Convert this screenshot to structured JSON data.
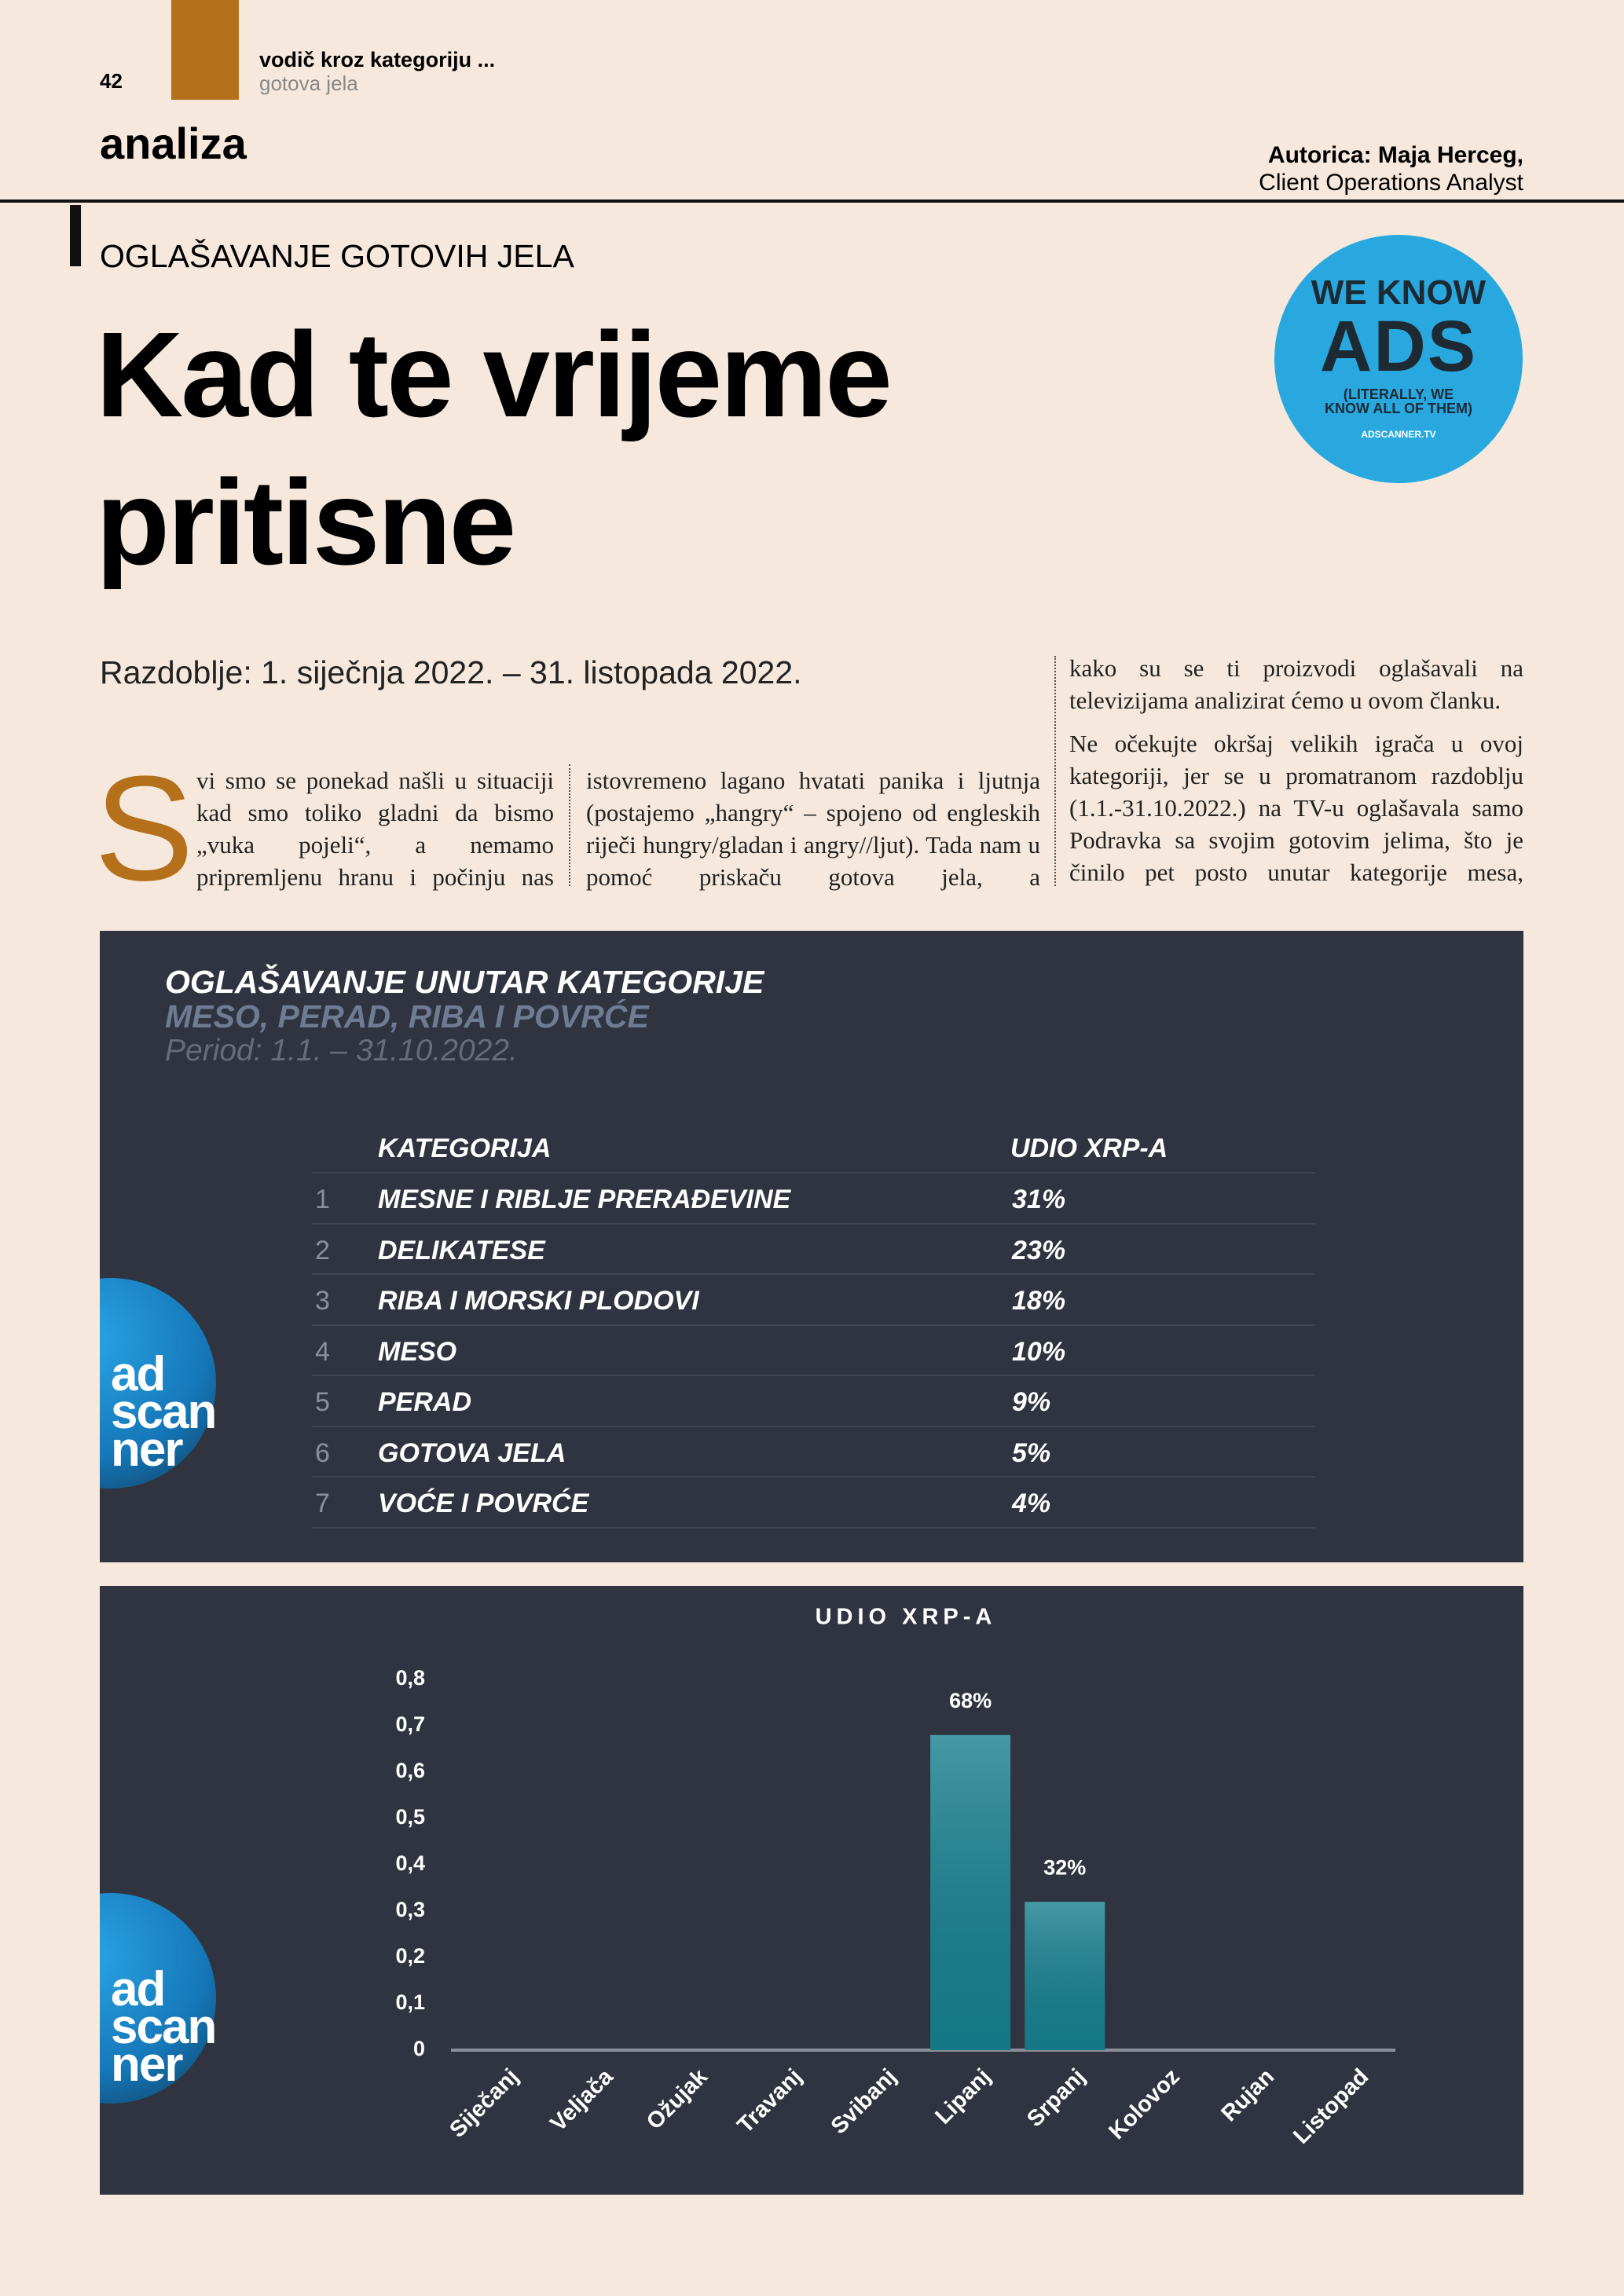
{
  "header": {
    "page_number": "42",
    "section": "vodič kroz kategoriju ...",
    "subsection": "gotova jela",
    "rubric": "analiza",
    "author": "Autorica: Maja Herceg,",
    "author_role": "Client Operations Analyst"
  },
  "article": {
    "kicker": "OGLAŠAVANJE GOTOVIH JELA",
    "title_lines": [
      "Kad te vrijeme",
      "pritisne"
    ],
    "period": "Razdoblje: 1. siječnja 2022. – 31. listopada 2022.",
    "drop_cap": "S",
    "column_1": "vi smo se ponekad našli u situaciji kad smo toliko gladni da bismo „vuka pojeli“, a nemamo pripremljenu hranu i počinju nas",
    "column_2": "istovremeno lagano hvatati panika i ljutnja (postajemo „hangry“ – spojeno od engleskih riječi hungry/gladan i angry//ljut). Tada nam u pomoć priskaču gotova jela, a",
    "column_3": [
      "kako su se ti proizvodi oglašavali na televizijama analizirat ćemo u ovom članku.",
      "Ne očekujte okršaj velikih igrača u ovoj kategoriji, jer se u promatranom razdoblju (1.1.-31.10.2022.) na TV-u oglašavala samo Podravka sa svojim gotovim jelima, što je činilo pet posto unutar kategorije mesa,"
    ]
  },
  "badge": {
    "line_1": "WE KNOW",
    "line_2": "ADS",
    "line_3": "(LITERALLY, WE KNOW ALL OF THEM)",
    "line_4": "ADSCANNER.TV"
  },
  "logo": [
    "ad",
    "scan",
    "ner"
  ],
  "table": {
    "title": "OGLAŠAVANJE UNUTAR KATEGORIJE",
    "subtitle": "MESO, PERAD, RIBA I POVRĆE",
    "period": "Period: 1.1. – 31.10.2022.",
    "header": [
      "KATEGORIJA",
      "UDIO XRP-A"
    ],
    "rows": [
      [
        "1",
        "MESNE I RIBLJE PRERAĐEVINE",
        "31%"
      ],
      [
        "2",
        "DELIKATESE",
        "23%"
      ],
      [
        "3",
        "RIBA I MORSKI PLODOVI",
        "18%"
      ],
      [
        "4",
        "MESO",
        "10%"
      ],
      [
        "5",
        "PERAD",
        "9%"
      ],
      [
        "6",
        "GOTOVA JELA",
        "5%"
      ],
      [
        "7",
        "VOĆE I POVRĆE",
        "4%"
      ]
    ]
  },
  "chart_data": {
    "type": "bar",
    "title": "UDIO XRP-A",
    "categories": [
      "Siječanj",
      "Veljača",
      "Ožujak",
      "Travanj",
      "Svibanj",
      "Lipanj",
      "Srpanj",
      "Kolovoz",
      "Rujan",
      "Listopad"
    ],
    "values": [
      0,
      0,
      0,
      0,
      0,
      0.68,
      0.32,
      0,
      0,
      0
    ],
    "value_labels": [
      null,
      null,
      null,
      null,
      null,
      "68%",
      "32%",
      null,
      null,
      null
    ],
    "color": "#177f8e",
    "ylim": [
      0,
      0.8
    ],
    "yticks": [
      0,
      {
        "value": 0.1,
        "label": "0,1"
      },
      {
        "value": 0.2,
        "label": "0,2"
      },
      {
        "value": 0.3,
        "label": "0,3"
      },
      {
        "value": 0.4,
        "label": "0,4"
      },
      {
        "value": 0.5,
        "label": "0,5"
      },
      {
        "value": 0.6,
        "label": "0,6"
      },
      {
        "value": 0.7,
        "label": "0,7"
      },
      {
        "value": 0.8,
        "label": "0,8"
      }
    ]
  }
}
